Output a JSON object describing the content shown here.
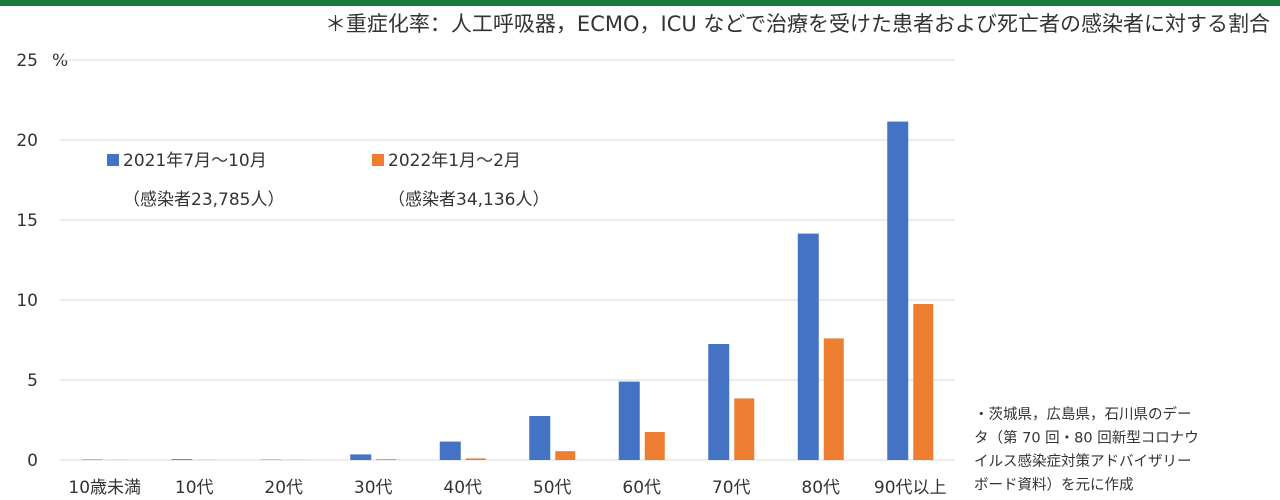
{
  "chart_data": {
    "type": "bar",
    "title": "＊重症化率：人工呼吸器，ECMO，ICU などで治療を受けた患者および死亡者の感染者に対する割合",
    "y_unit": "%",
    "categories": [
      "10歳未満",
      "10代",
      "20代",
      "30代",
      "40代",
      "50代",
      "60代",
      "70代",
      "80代",
      "90代以上"
    ],
    "series": [
      {
        "name": "2021年7月〜10月",
        "note": "（感染者23,785人）",
        "color": "#4472c4",
        "values": [
          0.03,
          0.05,
          0.02,
          0.35,
          1.15,
          2.75,
          4.9,
          7.25,
          14.15,
          21.15
        ]
      },
      {
        "name": "2022年1月〜2月",
        "note": "（感染者34,136人）",
        "color": "#ed7d31",
        "values": [
          0.01,
          0.01,
          0.01,
          0.05,
          0.1,
          0.55,
          1.75,
          3.85,
          7.6,
          9.75
        ]
      }
    ],
    "ylim": [
      0,
      25
    ],
    "yticks": [
      0,
      5,
      10,
      15,
      20,
      25
    ],
    "grid": true,
    "source_note": [
      "・茨城県，広島県，石川県のデー",
      "タ（第 70 回・80 回新型コロナウ",
      "イルス感染症対策アドバイザリー",
      "ボード資料）を元に作成"
    ]
  }
}
